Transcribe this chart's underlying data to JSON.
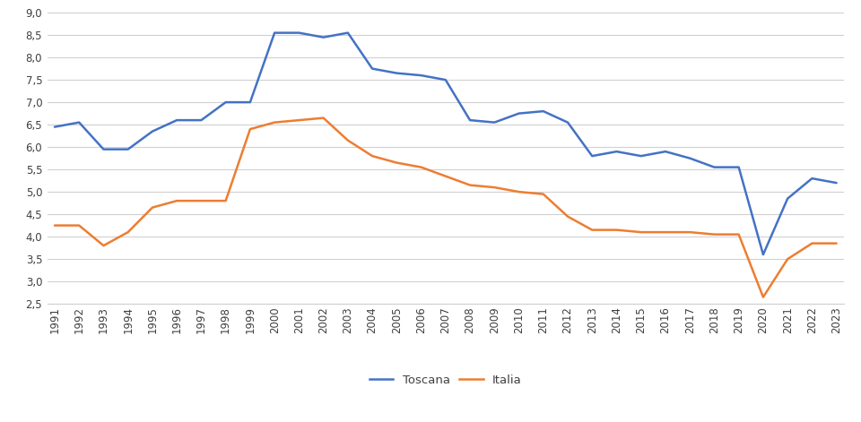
{
  "years": [
    1991,
    1992,
    1993,
    1994,
    1995,
    1996,
    1997,
    1998,
    1999,
    2000,
    2001,
    2002,
    2003,
    2004,
    2005,
    2006,
    2007,
    2008,
    2009,
    2010,
    2011,
    2012,
    2013,
    2014,
    2015,
    2016,
    2017,
    2018,
    2019,
    2020,
    2021,
    2022,
    2023
  ],
  "toscana": [
    6.45,
    6.55,
    5.95,
    5.95,
    6.35,
    6.6,
    6.6,
    7.0,
    7.0,
    8.55,
    8.55,
    8.45,
    8.55,
    7.75,
    7.65,
    7.6,
    7.5,
    6.6,
    6.55,
    6.75,
    6.8,
    6.55,
    5.8,
    5.9,
    5.8,
    5.9,
    5.75,
    5.55,
    5.55,
    3.6,
    4.85,
    5.3,
    5.2
  ],
  "italia": [
    4.25,
    4.25,
    3.8,
    4.1,
    4.65,
    4.8,
    4.8,
    4.8,
    6.4,
    6.55,
    6.6,
    6.65,
    6.15,
    5.8,
    5.65,
    5.55,
    5.35,
    5.15,
    5.1,
    5.0,
    4.95,
    4.45,
    4.15,
    4.15,
    4.1,
    4.1,
    4.1,
    4.05,
    4.05,
    2.65,
    3.5,
    3.85,
    3.85
  ],
  "toscana_color": "#4472C4",
  "italia_color": "#ED7D31",
  "ylim": [
    2.5,
    9.0
  ],
  "yticks": [
    2.5,
    3.0,
    3.5,
    4.0,
    4.5,
    5.0,
    5.5,
    6.0,
    6.5,
    7.0,
    7.5,
    8.0,
    8.5,
    9.0
  ],
  "ytick_labels": [
    "2,5",
    "3,0",
    "3,5",
    "4,0",
    "4,5",
    "5,0",
    "5,5",
    "6,0",
    "6,5",
    "7,0",
    "7,5",
    "8,0",
    "8,5",
    "9,0"
  ],
  "legend_labels": [
    "Toscana",
    "Italia"
  ],
  "line_width": 1.8,
  "background_color": "#ffffff",
  "grid_color": "#d0d0d0"
}
